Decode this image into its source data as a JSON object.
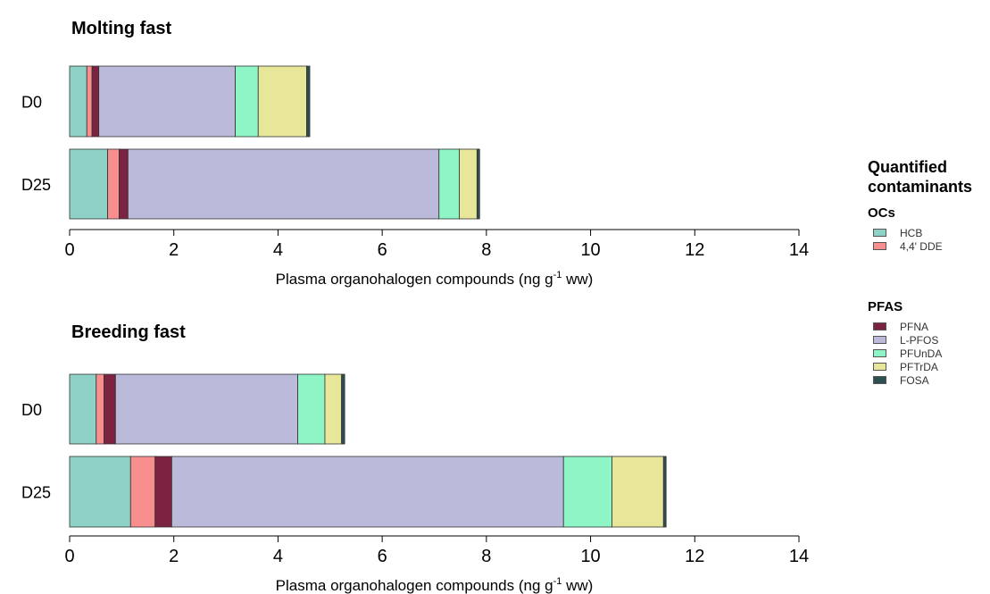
{
  "chart_data": [
    {
      "type": "bar",
      "orientation": "horizontal",
      "stacked": true,
      "title": "Molting fast",
      "xlabel": "Plasma organohalogen compounds (ng g",
      "xlabel_sup": "-1",
      "xlabel_tail": " ww)",
      "xlim": [
        0,
        14
      ],
      "xticks": [
        "0",
        "2",
        "4",
        "6",
        "8",
        "10",
        "12",
        "14"
      ],
      "categories": [
        "D0",
        "D25"
      ],
      "series": [
        {
          "name": "HCB",
          "values": [
            0.33,
            0.73
          ]
        },
        {
          "name": "4,4' DDE",
          "values": [
            0.1,
            0.22
          ]
        },
        {
          "name": "PFNA",
          "values": [
            0.13,
            0.17
          ]
        },
        {
          "name": "L-PFOS",
          "values": [
            2.62,
            5.97
          ]
        },
        {
          "name": "PFUnDA",
          "values": [
            0.44,
            0.39
          ]
        },
        {
          "name": "PFTrDA",
          "values": [
            0.93,
            0.34
          ]
        },
        {
          "name": "FOSA",
          "values": [
            0.06,
            0.05
          ]
        }
      ]
    },
    {
      "type": "bar",
      "orientation": "horizontal",
      "stacked": true,
      "title": "Breeding fast",
      "xlabel": "Plasma organohalogen compounds (ng g",
      "xlabel_sup": "-1",
      "xlabel_tail": " ww)",
      "xlim": [
        0,
        14
      ],
      "xticks": [
        "0",
        "2",
        "4",
        "6",
        "8",
        "10",
        "12",
        "14"
      ],
      "categories": [
        "D0",
        "D25"
      ],
      "series": [
        {
          "name": "HCB",
          "values": [
            0.51,
            1.17
          ]
        },
        {
          "name": "4,4' DDE",
          "values": [
            0.15,
            0.47
          ]
        },
        {
          "name": "PFNA",
          "values": [
            0.22,
            0.32
          ]
        },
        {
          "name": "L-PFOS",
          "values": [
            3.5,
            7.52
          ]
        },
        {
          "name": "PFUnDA",
          "values": [
            0.52,
            0.93
          ]
        },
        {
          "name": "PFTrDA",
          "values": [
            0.32,
            0.99
          ]
        },
        {
          "name": "FOSA",
          "values": [
            0.06,
            0.05
          ]
        }
      ]
    }
  ],
  "legend": {
    "title_line1": "Quantified",
    "title_line2": "contaminants",
    "groups": [
      {
        "name": "OCs",
        "items": [
          "HCB",
          "4,4' DDE"
        ]
      },
      {
        "name": "PFAS",
        "items": [
          "PFNA",
          "L-PFOS",
          "PFUnDA",
          "PFTrDA",
          "FOSA"
        ]
      }
    ]
  },
  "colors": {
    "HCB": "#8ed1c6",
    "4,4' DDE": "#f88f8e",
    "PFNA": "#7b2341",
    "L-PFOS": "#bcbada",
    "PFUnDA": "#8ef5c6",
    "PFTrDA": "#e8e699",
    "FOSA": "#2d4f52"
  }
}
